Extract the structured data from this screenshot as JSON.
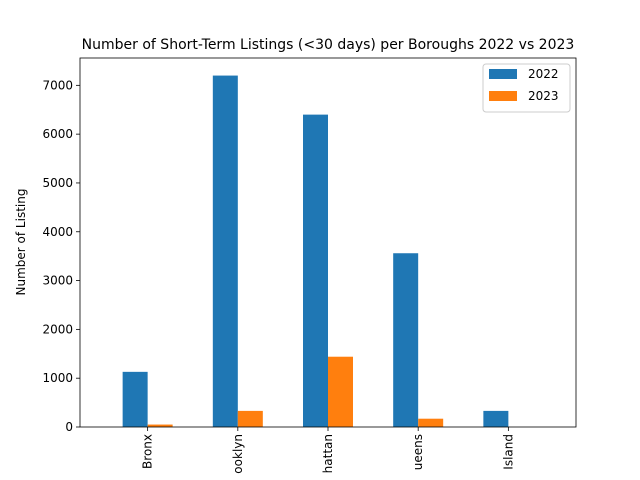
{
  "chart_data": {
    "type": "bar",
    "title": "Number of Short-Term Listings (<30 days) per Boroughs 2022 vs 2023",
    "xlabel": "",
    "ylabel": "Number of Listing",
    "categories": [
      "Bronx",
      "ooklyn",
      "hattan",
      "ueens",
      "Island"
    ],
    "series": [
      {
        "name": "2022",
        "color": "#1f77b4",
        "values": [
          1130,
          7200,
          6400,
          3560,
          330
        ]
      },
      {
        "name": "2023",
        "color": "#ff7f0e",
        "values": [
          50,
          330,
          1440,
          170,
          0
        ]
      }
    ],
    "ylim": [
      0,
      7560
    ],
    "yticks": [
      0,
      1000,
      2000,
      3000,
      4000,
      5000,
      6000,
      7000
    ],
    "grid": false,
    "legend": "top-right"
  }
}
